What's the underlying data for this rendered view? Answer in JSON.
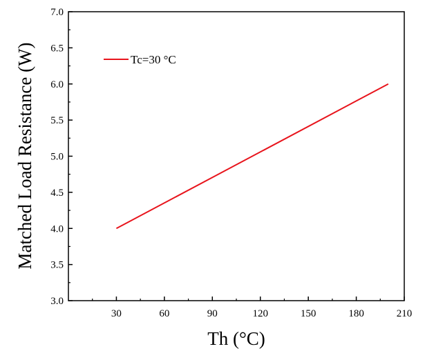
{
  "chart_data": {
    "type": "line",
    "xlabel": "Th (°C)",
    "ylabel": "Matched Load Resistance (W)",
    "xlim": [
      0,
      210
    ],
    "ylim": [
      3.0,
      7.0
    ],
    "xticks": [
      30,
      60,
      90,
      120,
      150,
      180,
      210
    ],
    "xtick_labels": [
      "30",
      "60",
      "90",
      "120",
      "150",
      "180",
      "210"
    ],
    "yticks": [
      3.0,
      3.5,
      4.0,
      4.5,
      5.0,
      5.5,
      6.0,
      6.5,
      7.0
    ],
    "ytick_labels": [
      "3.0",
      "3.5",
      "4.0",
      "4.5",
      "5.0",
      "5.5",
      "6.0",
      "6.5",
      "7.0"
    ],
    "grid": false,
    "legend_position": "top-left",
    "series": [
      {
        "name": "Tc=30 °C",
        "color": "#e8141c",
        "x": [
          30,
          200
        ],
        "y": [
          4.0,
          6.0
        ]
      }
    ]
  }
}
